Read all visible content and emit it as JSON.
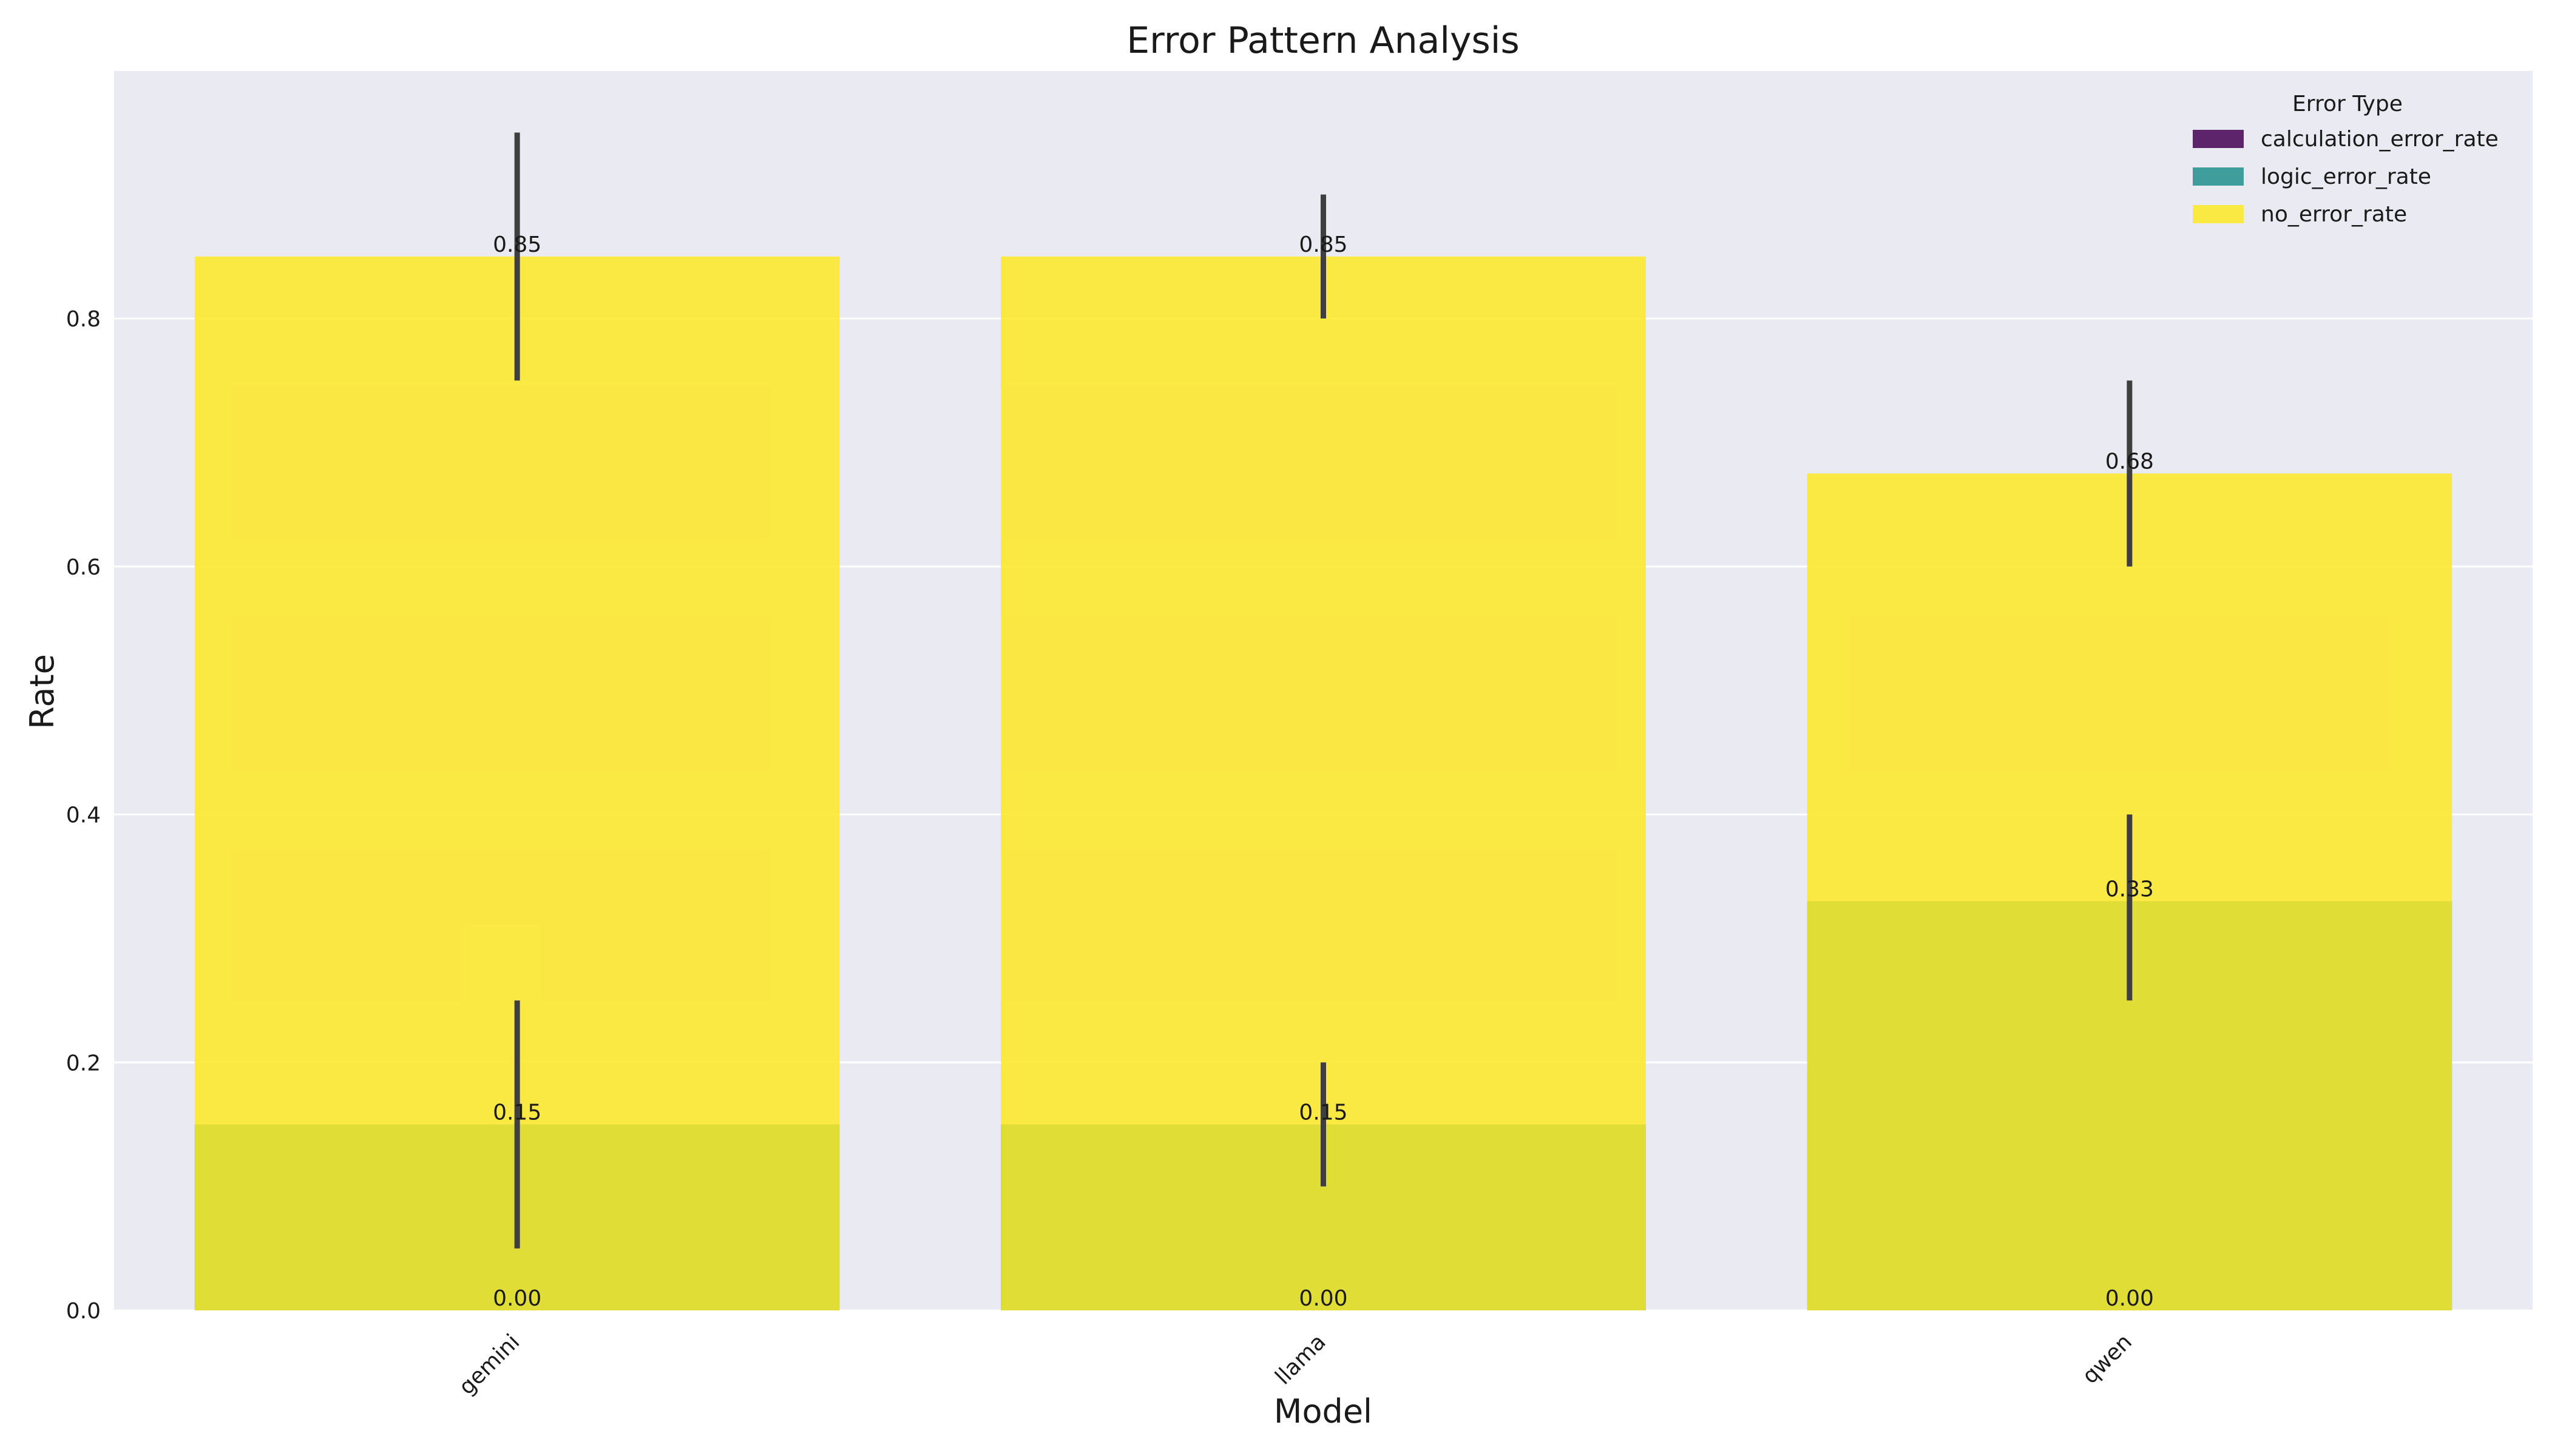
{
  "chart_data": {
    "type": "bar",
    "title": "Error Pattern Analysis",
    "xlabel": "Model",
    "ylabel": "Rate",
    "categories": [
      "gemini",
      "llama",
      "qwen"
    ],
    "ylim": [
      0,
      1.0
    ],
    "yticks": [
      "0.0",
      "0.2",
      "0.4",
      "0.6",
      "0.8"
    ],
    "grid": true,
    "legend_title": "Error Type",
    "legend_position": "top-right",
    "series": [
      {
        "name": "calculation_error_rate",
        "color": "#440154",
        "values": [
          0.0,
          0.0,
          0.0
        ],
        "error_low": [
          0.0,
          0.0,
          0.0
        ],
        "error_high": [
          0.0,
          0.0,
          0.0
        ],
        "labels": [
          "0.00",
          "0.00",
          "0.00"
        ]
      },
      {
        "name": "logic_error_rate",
        "color": "#21918c",
        "values": [
          0.15,
          0.15,
          0.33
        ],
        "error_low": [
          0.05,
          0.1,
          0.25
        ],
        "error_high": [
          0.25,
          0.2,
          0.4
        ],
        "labels": [
          "0.15",
          "0.15",
          "0.33"
        ]
      },
      {
        "name": "no_error_rate",
        "color": "#fde725",
        "values": [
          0.85,
          0.85,
          0.675
        ],
        "error_low": [
          0.75,
          0.8,
          0.6
        ],
        "error_high": [
          0.95,
          0.9,
          0.75
        ],
        "labels": [
          "0.85",
          "0.85",
          "0.68"
        ]
      }
    ],
    "colors": {
      "plot_background": "#eaeaf2",
      "grid": "#ffffff",
      "error_bar": "#3f3f3f"
    }
  }
}
